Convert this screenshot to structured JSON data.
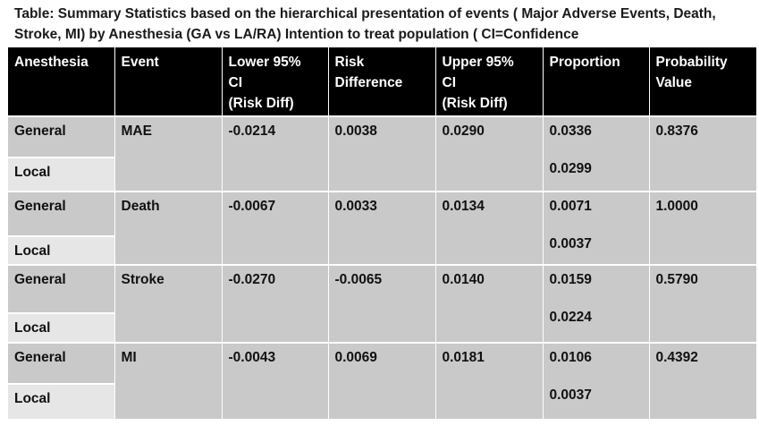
{
  "caption": "Table: Summary Statistics based on the hierarchical presentation of events ( Major Adverse Events, Death, Stroke, MI) by Anesthesia (GA vs LA/RA) Intention to treat population ( CI=Confidence",
  "headers": {
    "anesthesia": "Anesthesia",
    "event": "Event",
    "lower_ci": [
      "Lower 95%",
      "CI",
      "(Risk Diff)"
    ],
    "risk_diff": [
      "Risk",
      "Difference"
    ],
    "upper_ci": [
      "Upper 95%",
      "CI",
      "(Risk Diff)"
    ],
    "proportion": "Proportion",
    "probability": [
      "Probability",
      "Value"
    ]
  },
  "rows": [
    {
      "group_a": "General",
      "group_b": "Local",
      "event": "MAE",
      "lower_ci": "-0.0214",
      "risk_diff": "0.0038",
      "upper_ci": "0.0290",
      "proportion_a": "0.0336",
      "proportion_b": "0.0299",
      "probability": "0.8376"
    },
    {
      "group_a": "General",
      "group_b": "Local",
      "event": "Death",
      "lower_ci": "-0.0067",
      "risk_diff": "0.0033",
      "upper_ci": "0.0134",
      "proportion_a": "0.0071",
      "proportion_b": "0.0037",
      "probability": "1.0000"
    },
    {
      "group_a": "General",
      "group_b": "Local",
      "event": "Stroke",
      "lower_ci": "-0.0270",
      "risk_diff": "-0.0065",
      "upper_ci": "0.0140",
      "proportion_a": "0.0159",
      "proportion_b": "0.0224",
      "probability": "0.5790"
    },
    {
      "group_a": "General",
      "group_b": "Local",
      "event": "MI",
      "lower_ci": "-0.0043",
      "risk_diff": "0.0069",
      "upper_ci": "0.0181",
      "proportion_a": "0.0106",
      "proportion_b": "0.0037",
      "probability": "0.4392"
    }
  ],
  "colors": {
    "header_bg": "#000000",
    "header_text": "#ffffff",
    "cell_bg": "#c9c9c9",
    "local_bg": "#e6e6e6"
  }
}
